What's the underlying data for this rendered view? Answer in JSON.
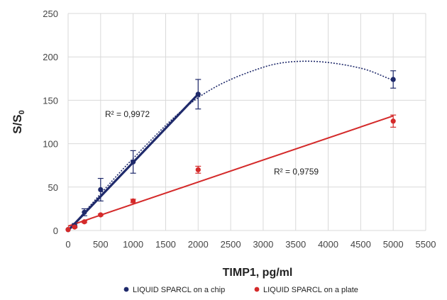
{
  "chart_data": {
    "type": "scatter",
    "xlabel": "TIMP1, pg/ml",
    "ylabel": "S/S",
    "ylabel_subscript": "0",
    "xlim": [
      0,
      5500
    ],
    "ylim": [
      0,
      250
    ],
    "x_ticks": [
      "0",
      "500",
      "1000",
      "1500",
      "2000",
      "2500",
      "3000",
      "3500",
      "4000",
      "4500",
      "5000",
      "5500"
    ],
    "y_ticks": [
      "0",
      "50",
      "100",
      "150",
      "200",
      "250"
    ],
    "grid": "vertical and horizontal",
    "legend_position": "bottom",
    "series": [
      {
        "name": "LIQUID SPARCL on a chip",
        "color": "#1f2a6b",
        "x": [
          0,
          100,
          250,
          500,
          1000,
          2000,
          5000
        ],
        "y": [
          1,
          6,
          21,
          47,
          79,
          157,
          174
        ],
        "error": [
          0,
          2,
          4,
          13,
          13,
          17,
          10
        ],
        "fit_line": {
          "type": "linear",
          "x": [
            0,
            2000
          ],
          "y": [
            0,
            157
          ]
        },
        "fit_curve": {
          "type": "polynomial",
          "x": [
            0,
            1000,
            2000,
            3000,
            3700,
            4500,
            5000
          ],
          "y": [
            0,
            83,
            153,
            188,
            195,
            187,
            173
          ]
        },
        "r2_label": "R² = 0,9972"
      },
      {
        "name": "LIQUID SPARCL on a plate",
        "color": "#d42a2a",
        "x": [
          0,
          100,
          250,
          500,
          1000,
          2000,
          5000
        ],
        "y": [
          1,
          4,
          10,
          18,
          34,
          70,
          126
        ],
        "error": [
          0,
          1,
          1,
          1,
          2,
          4,
          7
        ],
        "fit_line": {
          "type": "linear",
          "x": [
            0,
            5000
          ],
          "y": [
            5,
            132
          ]
        },
        "r2_label": "R² = 0,9759"
      }
    ]
  }
}
